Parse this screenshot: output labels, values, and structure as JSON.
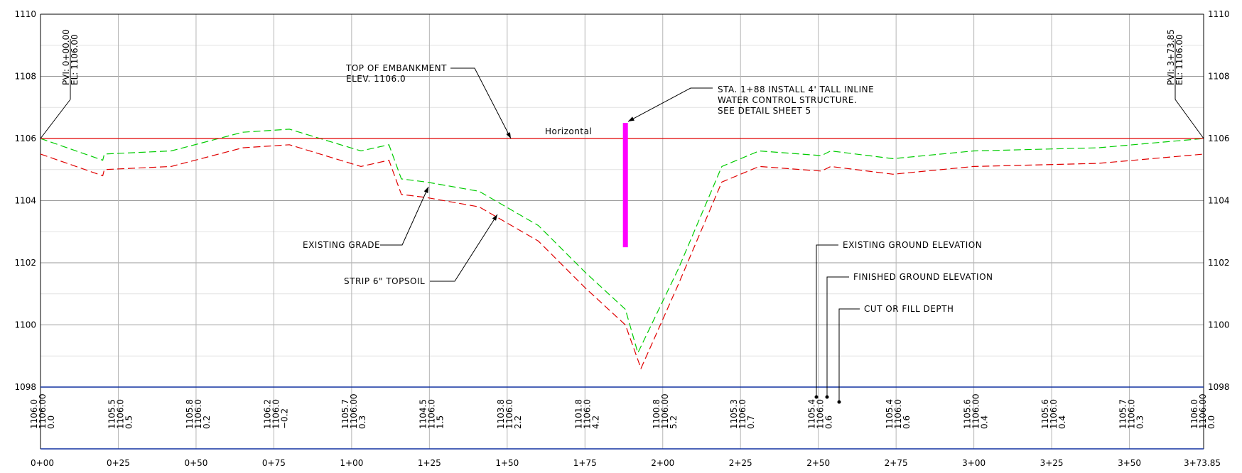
{
  "chart_data": {
    "type": "line",
    "xlim": [
      0,
      373.85
    ],
    "ylim": [
      1098,
      1110
    ],
    "y_ticks": [
      "1098",
      "1100",
      "1102",
      "1104",
      "1106",
      "1108",
      "1110"
    ],
    "x_ticks": [
      {
        "sta": 0,
        "label": "0+00"
      },
      {
        "sta": 25,
        "label": "0+25"
      },
      {
        "sta": 50,
        "label": "0+50"
      },
      {
        "sta": 75,
        "label": "0+75"
      },
      {
        "sta": 100,
        "label": "1+00"
      },
      {
        "sta": 125,
        "label": "1+25"
      },
      {
        "sta": 150,
        "label": "1+50"
      },
      {
        "sta": 175,
        "label": "1+75"
      },
      {
        "sta": 200,
        "label": "2+00"
      },
      {
        "sta": 225,
        "label": "2+25"
      },
      {
        "sta": 250,
        "label": "2+50"
      },
      {
        "sta": 275,
        "label": "2+75"
      },
      {
        "sta": 300,
        "label": "3+00"
      },
      {
        "sta": 325,
        "label": "3+25"
      },
      {
        "sta": 350,
        "label": "3+50"
      },
      {
        "sta": 373.85,
        "label": "3+73.85"
      }
    ],
    "series": [
      {
        "name": "EXISTING GRADE",
        "color": "#00cc00",
        "style": "dashed",
        "points": [
          [
            0,
            1106.0
          ],
          [
            20,
            1105.3
          ],
          [
            20.5,
            1105.5
          ],
          [
            42,
            1105.6
          ],
          [
            65,
            1106.2
          ],
          [
            80,
            1106.3
          ],
          [
            103,
            1105.6
          ],
          [
            112,
            1105.8
          ],
          [
            116,
            1104.7
          ],
          [
            124,
            1104.6
          ],
          [
            141,
            1104.3
          ],
          [
            160,
            1103.2
          ],
          [
            175,
            1101.7
          ],
          [
            188,
            1100.5
          ],
          [
            192,
            1099.1
          ],
          [
            205,
            1101.8
          ],
          [
            219,
            1105.1
          ],
          [
            231,
            1105.6
          ],
          [
            251,
            1105.45
          ],
          [
            254,
            1105.6
          ],
          [
            274,
            1105.35
          ],
          [
            300,
            1105.6
          ],
          [
            340,
            1105.7
          ],
          [
            374,
            1106.0
          ]
        ]
      },
      {
        "name": "STRIP 6\" TOPSOIL",
        "color": "#e00000",
        "style": "dashed",
        "points": [
          [
            0,
            1105.5
          ],
          [
            20,
            1104.8
          ],
          [
            20.5,
            1105.0
          ],
          [
            42,
            1105.1
          ],
          [
            65,
            1105.7
          ],
          [
            80,
            1105.8
          ],
          [
            103,
            1105.1
          ],
          [
            112,
            1105.3
          ],
          [
            116,
            1104.2
          ],
          [
            124,
            1104.1
          ],
          [
            141,
            1103.8
          ],
          [
            160,
            1102.7
          ],
          [
            175,
            1101.2
          ],
          [
            188,
            1100.0
          ],
          [
            193,
            1098.6
          ],
          [
            205,
            1101.3
          ],
          [
            219,
            1104.6
          ],
          [
            231,
            1105.1
          ],
          [
            251,
            1104.95
          ],
          [
            254,
            1105.1
          ],
          [
            274,
            1104.85
          ],
          [
            300,
            1105.1
          ],
          [
            340,
            1105.2
          ],
          [
            374,
            1105.5
          ]
        ]
      }
    ],
    "design_line": {
      "label": "Horizontal",
      "elev": 1106.0,
      "color": "#e00000"
    },
    "structure": {
      "sta": 188,
      "top": 1106.5,
      "bottom": 1102.5,
      "color": "#ff00ff"
    },
    "pvi_start": {
      "line1": "PVI: 0+00.00",
      "line2": "EL: 1106.00"
    },
    "pvi_end": {
      "line1": "PVI: 3+73.85",
      "line2": "EL: 1106.00"
    },
    "annotations": {
      "embankment": [
        "TOP OF EMBANKMENT",
        "ELEV. 1106.0"
      ],
      "structure": [
        "STA. 1+88 INSTALL 4' TALL INLINE",
        "WATER CONTROL STRUCTURE.",
        "SEE DETAIL SHEET 5"
      ],
      "existing_grade": "EXISTING GRADE",
      "topsoil": "STRIP 6\" TOPSOIL",
      "legend_existing": "EXISTING GROUND ELEVATION",
      "legend_finished": "FINISHED GROUND ELEVATION",
      "legend_cutfill": "CUT OR FILL DEPTH"
    },
    "table": [
      {
        "sta": 0,
        "col1": "1106.00",
        "col2": "0.0",
        "top": "1106.0"
      },
      {
        "sta": 25,
        "col1": "1106.0",
        "col2": "0.5",
        "top": "1105.5"
      },
      {
        "sta": 50,
        "col1": "1106.0",
        "col2": "0.2",
        "top": "1105.8"
      },
      {
        "sta": 75,
        "col1": "1106.0",
        "col2": "−0.2",
        "top": "1106.2"
      },
      {
        "sta": 100,
        "col1": "1106.00",
        "col2": "0.3",
        "top": "1105.7"
      },
      {
        "sta": 125,
        "col1": "1106.0",
        "col2": "1.5",
        "top": "1104.5"
      },
      {
        "sta": 150,
        "col1": "1106.0",
        "col2": "2.2",
        "top": "1103.8"
      },
      {
        "sta": 175,
        "col1": "1106.0",
        "col2": "4.2",
        "top": "1101.8"
      },
      {
        "sta": 200,
        "col1": "1106.00",
        "col2": "5.2",
        "top": "1100.8"
      },
      {
        "sta": 225,
        "col1": "1106.0",
        "col2": "0.7",
        "top": "1105.3"
      },
      {
        "sta": 250,
        "col1": "1106.0",
        "col2": "0.6",
        "top": "1105.4"
      },
      {
        "sta": 275,
        "col1": "1106.0",
        "col2": "0.6",
        "top": "1105.4"
      },
      {
        "sta": 300,
        "col1": "1106.00",
        "col2": "0.4",
        "top": "1105.6"
      },
      {
        "sta": 325,
        "col1": "1106.0",
        "col2": "0.4",
        "top": "1105.6"
      },
      {
        "sta": 350,
        "col1": "1106.0",
        "col2": "0.3",
        "top": "1105.7"
      },
      {
        "sta": 373.85,
        "col1": "1106.00",
        "col2": "0.0",
        "top": "1106.0"
      }
    ]
  }
}
